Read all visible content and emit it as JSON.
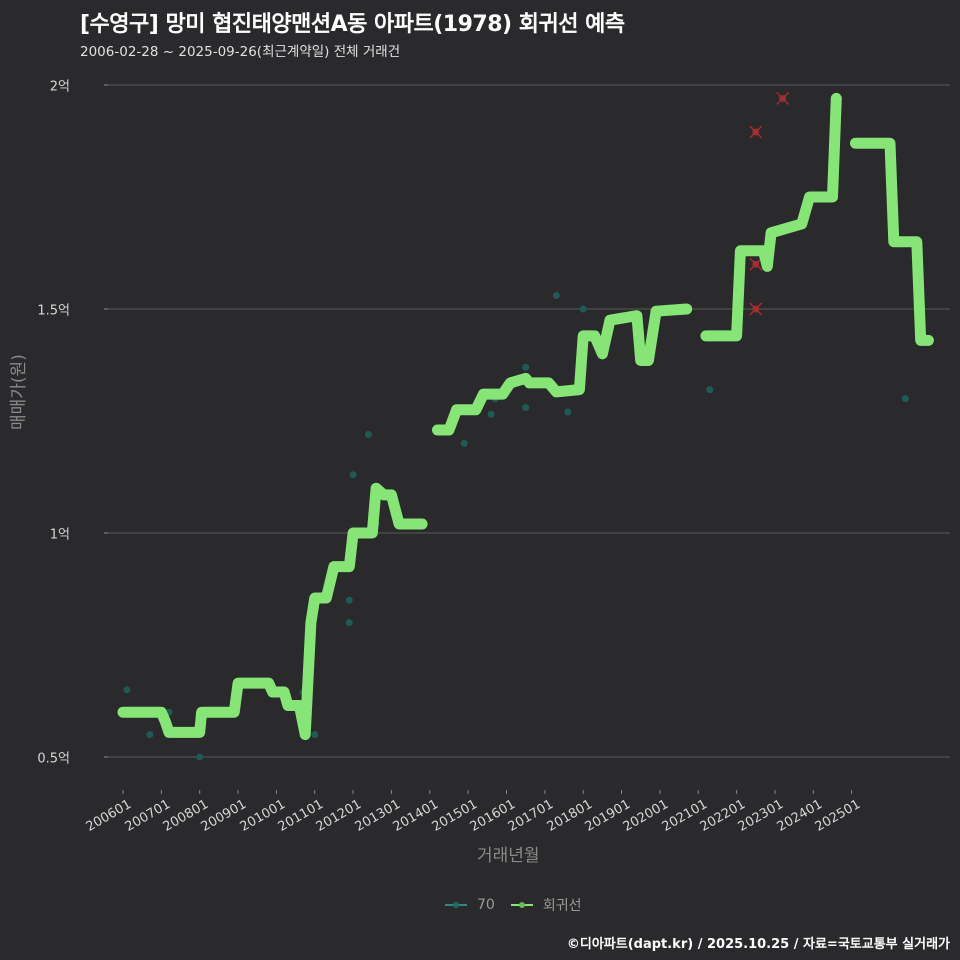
{
  "header": {
    "title": "[수영구] 망미 협진태양맨션A동 아파트(1978) 회귀선 예측",
    "subtitle": "2006-02-28 ~ 2025-09-26(최근계약일) 전체 거래건"
  },
  "axes": {
    "ylabel": "매매가(원)",
    "xlabel": "거래년월",
    "yticks": [
      {
        "label": "2억",
        "value": 20000
      },
      {
        "label": "1.5억",
        "value": 15000
      },
      {
        "label": "1억",
        "value": 10000
      },
      {
        "label": "0.5억",
        "value": 5000
      }
    ],
    "xticks": [
      "200601",
      "200701",
      "200801",
      "200901",
      "201001",
      "201101",
      "201201",
      "201301",
      "201401",
      "201501",
      "201601",
      "201701",
      "201801",
      "201901",
      "202001",
      "202101",
      "202201",
      "202301",
      "202401",
      "202501"
    ]
  },
  "legend": {
    "items": [
      {
        "label": "70",
        "color": "#2a8a80"
      },
      {
        "label": "회귀선",
        "color": "#86e576"
      }
    ]
  },
  "caption": "©디아파트(dapt.kr) / 2025.10.25 / 자료=국토교통부 실거래가",
  "colors": {
    "background": "#2a292b",
    "grid": "#5a5a5a",
    "line": "#86e576",
    "points": "#1f5a55",
    "outlier": "#c0262a"
  },
  "chart_data": {
    "type": "line",
    "title": "[수영구] 망미 협진태양맨션A동 아파트(1978) 회귀선 예측",
    "subtitle": "2006-02-28 ~ 2025-09-26(최근계약일) 전체 거래건",
    "xlabel": "거래년월",
    "ylabel": "매매가(원)",
    "ylim": [
      4300,
      20800
    ],
    "y_unit": "만원",
    "grid": true,
    "legend_position": "bottom",
    "series": [
      {
        "name": "회귀선",
        "segments": [
          [
            [
              2006.0,
              6000
            ],
            [
              2007.0,
              6000
            ],
            [
              2007.1,
              5800
            ],
            [
              2007.2,
              5550
            ],
            [
              2008.0,
              5550
            ],
            [
              2008.05,
              6000
            ],
            [
              2008.9,
              6000
            ],
            [
              2009.0,
              6650
            ],
            [
              2009.8,
              6650
            ],
            [
              2009.9,
              6450
            ],
            [
              2010.2,
              6450
            ],
            [
              2010.3,
              6150
            ],
            [
              2010.6,
              6150
            ],
            [
              2010.75,
              5500
            ],
            [
              2010.9,
              8000
            ],
            [
              2011.0,
              8550
            ],
            [
              2011.3,
              8550
            ],
            [
              2011.5,
              9250
            ],
            [
              2011.9,
              9250
            ],
            [
              2012.0,
              10000
            ],
            [
              2012.5,
              10000
            ],
            [
              2012.6,
              11000
            ],
            [
              2012.8,
              10850
            ],
            [
              2013.0,
              10850
            ],
            [
              2013.2,
              10200
            ],
            [
              2013.8,
              10200
            ]
          ],
          [
            [
              2014.2,
              12300
            ],
            [
              2014.5,
              12300
            ],
            [
              2014.7,
              12750
            ],
            [
              2015.2,
              12750
            ],
            [
              2015.4,
              13100
            ],
            [
              2015.9,
              13100
            ],
            [
              2016.1,
              13350
            ],
            [
              2016.5,
              13450
            ],
            [
              2016.6,
              13350
            ],
            [
              2017.1,
              13350
            ],
            [
              2017.3,
              13150
            ],
            [
              2017.9,
              13200
            ],
            [
              2018.0,
              14400
            ],
            [
              2018.3,
              14400
            ],
            [
              2018.5,
              14000
            ],
            [
              2018.7,
              14750
            ],
            [
              2019.4,
              14850
            ],
            [
              2019.5,
              13850
            ],
            [
              2019.7,
              13850
            ],
            [
              2019.9,
              14950
            ],
            [
              2020.7,
              15000
            ]
          ],
          [
            [
              2021.2,
              14400
            ],
            [
              2022.0,
              14400
            ],
            [
              2022.1,
              16300
            ],
            [
              2022.7,
              16300
            ],
            [
              2022.8,
              15950
            ],
            [
              2022.9,
              16700
            ],
            [
              2023.7,
              16900
            ],
            [
              2023.9,
              17500
            ],
            [
              2024.5,
              17500
            ],
            [
              2024.6,
              19700
            ]
          ],
          [
            [
              2025.1,
              18700
            ],
            [
              2026.0,
              18700
            ],
            [
              2026.1,
              16500
            ],
            [
              2026.7,
              16500
            ],
            [
              2026.8,
              14300
            ],
            [
              2027.0,
              14300
            ]
          ]
        ]
      },
      {
        "name": "70",
        "points": [
          [
            2006.1,
            6500
          ],
          [
            2006.7,
            5500
          ],
          [
            2007.2,
            6000
          ],
          [
            2008.0,
            5000
          ],
          [
            2010.7,
            6450
          ],
          [
            2011.0,
            5500
          ],
          [
            2011.9,
            9500
          ],
          [
            2011.9,
            8000
          ],
          [
            2011.9,
            8500
          ],
          [
            2012.0,
            11300
          ],
          [
            2012.4,
            12200
          ],
          [
            2012.6,
            10200
          ],
          [
            2013.2,
            10200
          ],
          [
            2014.5,
            12300
          ],
          [
            2014.9,
            12000
          ],
          [
            2015.6,
            12650
          ],
          [
            2015.7,
            13000
          ],
          [
            2016.5,
            13700
          ],
          [
            2016.5,
            12800
          ],
          [
            2017.3,
            15300
          ],
          [
            2017.6,
            12700
          ],
          [
            2018.0,
            15000
          ],
          [
            2021.3,
            13200
          ],
          [
            2026.4,
            13000
          ]
        ]
      },
      {
        "name": "outliers",
        "marker": "x",
        "points": [
          [
            2022.5,
            18950
          ],
          [
            2023.2,
            19700
          ],
          [
            2022.5,
            16000
          ],
          [
            2022.5,
            15000
          ]
        ]
      }
    ]
  }
}
